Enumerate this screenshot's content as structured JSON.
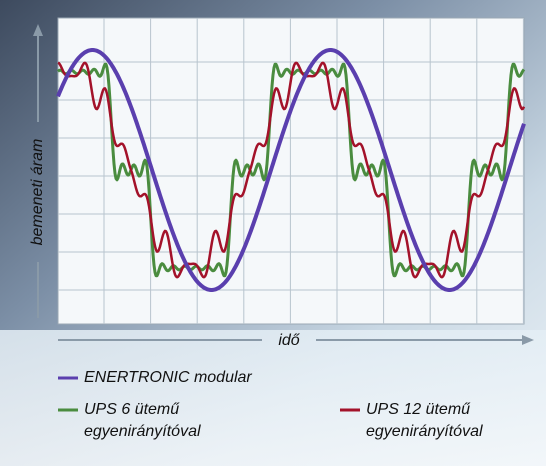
{
  "axis_labels": {
    "y": "bemeneti áram",
    "x": "idő"
  },
  "legend": [
    {
      "lines": [
        "ENERTRONIC modular"
      ],
      "color": "#5a3fae"
    },
    {
      "lines": [
        "UPS 6 ütemű",
        "egyenirányítóval"
      ],
      "color": "#4a8c3f"
    },
    {
      "lines": [
        "UPS 12 ütemű",
        "egyenirányítóval"
      ],
      "color": "#a3122a"
    }
  ]
}
